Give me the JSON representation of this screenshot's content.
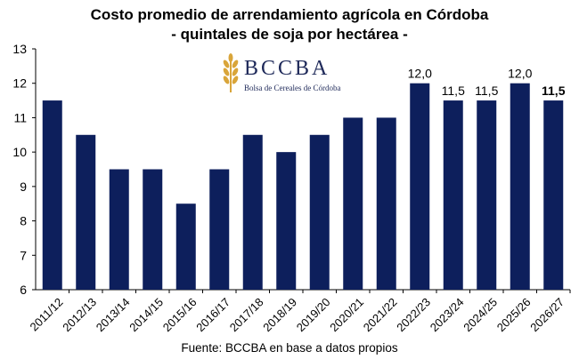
{
  "header": {
    "title_line1": "Costo promedio de arrendamiento agrícola en Córdoba",
    "title_line2": "- quintales de soja por hectárea -"
  },
  "logo": {
    "name": "BCCBA",
    "subtitle": "Bolsa de Cereales de Córdoba",
    "icon": "wheat-icon"
  },
  "source": "Fuente: BCCBA en base a datos propios",
  "colors": {
    "bar": "#0d1f5c",
    "axis": "#000000",
    "logo_gold": "#d9a53a"
  },
  "chart_data": {
    "type": "bar",
    "title": "Costo promedio de arrendamiento agrícola en Córdoba",
    "subtitle": "- quintales de soja por hectárea -",
    "categories": [
      "2011/12",
      "2012/13",
      "2013/14",
      "2014/15",
      "2015/16",
      "2016/17",
      "2017/18",
      "2018/19",
      "2019/20",
      "2020/21",
      "2021/22",
      "2022/23",
      "2023/24",
      "2024/25",
      "2025/26",
      "2026/27"
    ],
    "values": [
      11.5,
      10.5,
      9.5,
      9.5,
      8.5,
      9.5,
      10.5,
      10.0,
      10.5,
      11.0,
      11.0,
      12.0,
      11.5,
      11.5,
      12.0,
      11.5
    ],
    "data_labels": [
      "",
      "",
      "",
      "",
      "",
      "",
      "",
      "",
      "",
      "",
      "",
      "12,0",
      "11,5",
      "11,5",
      "12,0",
      "11,5"
    ],
    "ylim": [
      6,
      13
    ],
    "yticks": [
      6,
      7,
      8,
      9,
      10,
      11,
      12,
      13
    ],
    "xlabel": "",
    "ylabel": "",
    "grid": false,
    "legend": "none"
  }
}
